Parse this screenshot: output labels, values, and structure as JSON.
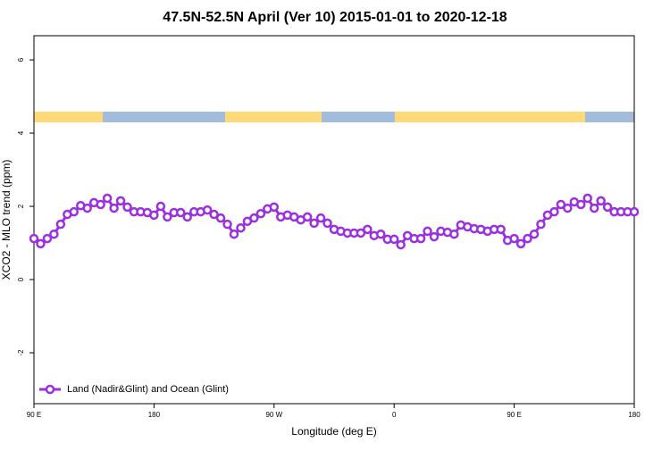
{
  "chart_data": {
    "type": "line",
    "title": "47.5N-52.5N April (Ver 10)   2015-01-01 to 2020-12-18",
    "xlabel": "Longitude (deg E)",
    "ylabel": "XCO2 - MLO trend (ppm)",
    "xlim": [
      90,
      540
    ],
    "ylim": [
      -3.39,
      6.66
    ],
    "xticks": [
      {
        "value": 90,
        "label": "90 E"
      },
      180,
      {
        "value": 270,
        "label": "90 W"
      },
      {
        "value": 360,
        "label": "0"
      },
      {
        "value": 450,
        "label": "90 E"
      },
      {
        "value": 540,
        "label": "180"
      }
    ],
    "yticks": [
      -2,
      0,
      2,
      4,
      6
    ],
    "legend": "bottom-left",
    "series": [
      {
        "name": "Land (Nadir&Glint) and Ocean (Glint)",
        "color": "#9b30e0",
        "x": [
          90,
          95,
          100,
          105,
          110,
          115,
          120,
          125,
          130,
          135,
          140,
          145,
          150,
          155,
          160,
          165,
          170,
          175,
          180,
          185,
          190,
          195,
          200,
          205,
          210,
          215,
          220,
          225,
          230,
          235,
          240,
          245,
          250,
          255,
          260,
          265,
          270,
          275,
          280,
          285,
          290,
          295,
          300,
          305,
          310,
          315,
          320,
          325,
          330,
          335,
          340,
          345,
          350,
          355,
          360,
          365,
          370,
          375,
          380,
          385,
          390,
          395,
          400,
          405,
          410,
          415,
          420,
          425,
          430,
          435,
          440,
          445,
          450,
          455,
          460,
          465,
          470,
          475,
          480,
          485,
          490,
          495,
          500,
          505,
          510,
          515,
          520,
          525,
          530,
          535,
          540
        ],
        "values": [
          1.12,
          0.98,
          1.12,
          1.24,
          1.51,
          1.78,
          1.85,
          2.02,
          1.95,
          2.1,
          2.05,
          2.22,
          1.95,
          2.15,
          1.98,
          1.85,
          1.85,
          1.83,
          1.76,
          2.0,
          1.71,
          1.83,
          1.83,
          1.71,
          1.85,
          1.85,
          1.9,
          1.78,
          1.68,
          1.51,
          1.24,
          1.41,
          1.59,
          1.68,
          1.8,
          1.93,
          1.98,
          1.71,
          1.76,
          1.71,
          1.63,
          1.71,
          1.54,
          1.68,
          1.54,
          1.37,
          1.32,
          1.27,
          1.27,
          1.27,
          1.37,
          1.2,
          1.24,
          1.1,
          1.1,
          0.95,
          1.2,
          1.12,
          1.12,
          1.32,
          1.17,
          1.32,
          1.29,
          1.24,
          1.49,
          1.44,
          1.39,
          1.37,
          1.32,
          1.37,
          1.37,
          1.07,
          1.12,
          0.98,
          1.12,
          1.24,
          1.51,
          1.76,
          1.85,
          2.05,
          1.95,
          2.12,
          2.05,
          2.22,
          1.95,
          2.15,
          1.98,
          1.85,
          1.85,
          1.85,
          1.85
        ]
      }
    ]
  }
}
